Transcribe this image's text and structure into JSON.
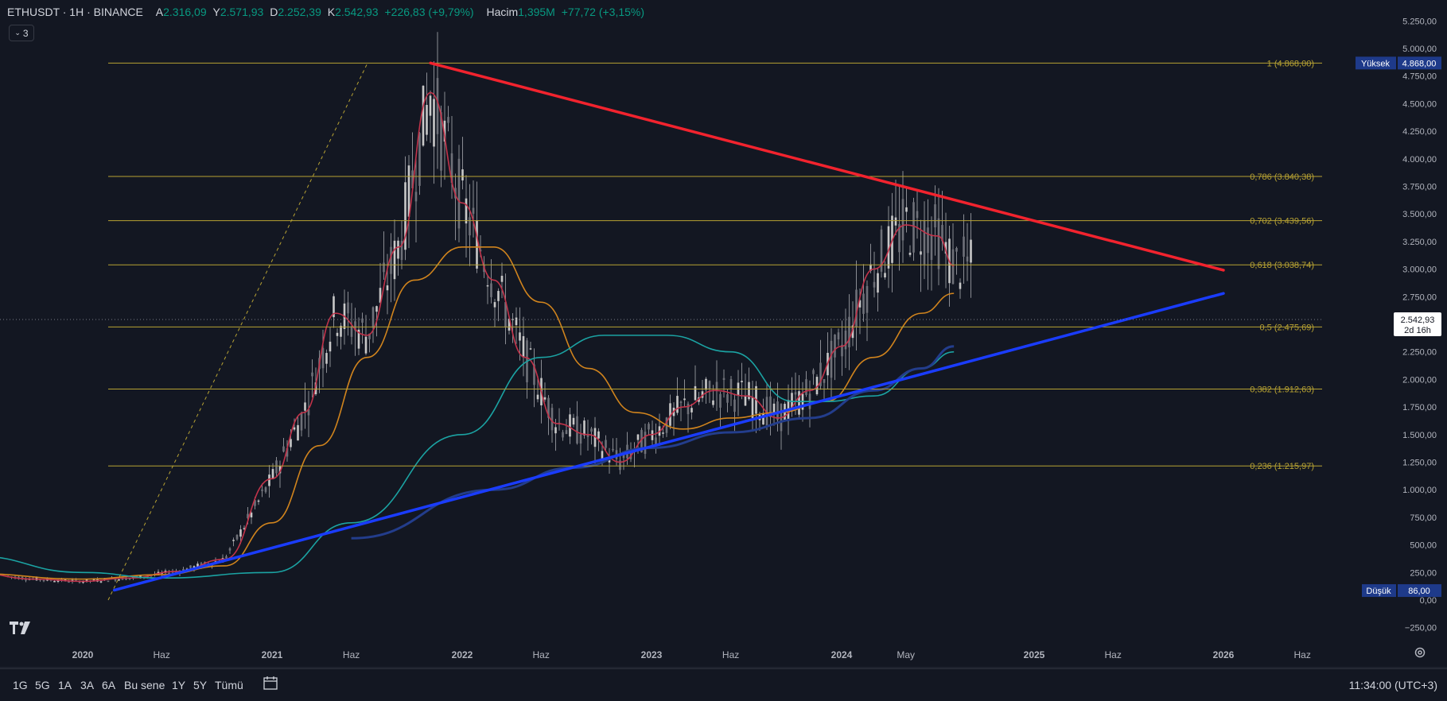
{
  "header": {
    "symbol": "ETHUSDT · 1H · BINANCE",
    "open_label": "A",
    "open": "2.316,09",
    "high_label": "Y",
    "high": "2.571,93",
    "low_label": "D",
    "low": "2.252,39",
    "close_label": "K",
    "close": "2.542,93",
    "change": "+226,83 (+9,79%)",
    "volume_label": "Hacim",
    "volume": "1,395M",
    "volume_change": "+77,72 (+3,15%)",
    "indicator_count": "3"
  },
  "price_axis": {
    "ticks": [
      "5.250,00",
      "5.000,00",
      "4.750,00",
      "4.500,00",
      "4.250,00",
      "4.000,00",
      "3.750,00",
      "3.500,00",
      "3.250,00",
      "3.000,00",
      "2.750,00",
      "2.500,00",
      "2.250,00",
      "2.000,00",
      "1.750,00",
      "1.500,00",
      "1.250,00",
      "1.000,00",
      "750,00",
      "500,00",
      "250,00",
      "0,00",
      "−250,00"
    ],
    "high_label": "Yüksek",
    "high_value": "4.868,00",
    "low_label": "Düşük",
    "low_value": "86,00",
    "last_price": "2.542,93",
    "countdown": "2d 16h"
  },
  "time_axis": {
    "labels": [
      "2020",
      "Haz",
      "2021",
      "Haz",
      "2022",
      "Haz",
      "2023",
      "Haz",
      "2024",
      "May",
      "2025",
      "Haz",
      "2026",
      "Haz"
    ]
  },
  "bottom_bar": {
    "timeframes": [
      "1G",
      "5G",
      "1A",
      "3A",
      "6A",
      "Bu sene",
      "1Y",
      "5Y",
      "Tümü"
    ],
    "clock": "11:34:00 (UTC+3)"
  },
  "colors": {
    "background": "#131722",
    "fib": "#b7a233",
    "trend_top": "#f2232e",
    "trend_bottom": "#1a3cff",
    "ma_red": "#c2334a",
    "ma_orange": "#d1841d",
    "ma_teal": "#1ba3a3",
    "ma_navy": "#233d8c",
    "candle": "#c8c8c8"
  },
  "chart_data": {
    "type": "line",
    "title": "ETHUSDT · 1H · BINANCE",
    "ylim": [
      -250,
      5250
    ],
    "log_scale": false,
    "grid": false,
    "fib_levels": [
      {
        "label": "1 (4.868,00)",
        "value": 4868.0
      },
      {
        "label": "0,786 (3.840,38)",
        "value": 3840.38
      },
      {
        "label": "0,702 (3.439,56)",
        "value": 3439.56
      },
      {
        "label": "0,618 (3.038,74)",
        "value": 3038.74
      },
      {
        "label": "0,5 (2.475,69)",
        "value": 2475.69
      },
      {
        "label": "0,382 (1.912,63)",
        "value": 1912.63
      },
      {
        "label": "0,236 (1.215,97)",
        "value": 1215.97
      }
    ],
    "trendlines": [
      {
        "x": [
          "2021-11",
          "2026-01"
        ],
        "y": [
          4868,
          2990
        ]
      },
      {
        "x": [
          "2020-03",
          "2026-01"
        ],
        "y": [
          90,
          2780
        ]
      }
    ],
    "series": [
      {
        "x": [
          "2019-06",
          "2019-10",
          "2020-01",
          "2020-04",
          "2020-07",
          "2020-10",
          "2021-01",
          "2021-03",
          "2021-05",
          "2021-07",
          "2021-09",
          "2021-11",
          "2022-01",
          "2022-03",
          "2022-05",
          "2022-07",
          "2022-09",
          "2022-11",
          "2023-01",
          "2023-03",
          "2023-05",
          "2023-07",
          "2023-09",
          "2023-11",
          "2024-01",
          "2024-03",
          "2024-05",
          "2024-07",
          "2024-08"
        ],
        "values": [
          250,
          190,
          170,
          200,
          260,
          370,
          1100,
          1700,
          2600,
          2400,
          3200,
          4600,
          3600,
          2900,
          2200,
          1600,
          1500,
          1250,
          1500,
          1750,
          1900,
          1850,
          1650,
          1900,
          2300,
          3000,
          3400,
          3300,
          3030
        ]
      },
      {
        "x": [
          "2019-06",
          "2020-01",
          "2020-06",
          "2020-10",
          "2021-01",
          "2021-04",
          "2021-07",
          "2021-10",
          "2022-01",
          "2022-03",
          "2022-06",
          "2022-09",
          "2022-12",
          "2023-03",
          "2023-06",
          "2023-09",
          "2023-12",
          "2024-03",
          "2024-06",
          "2024-08"
        ],
        "values": [
          240,
          190,
          230,
          310,
          700,
          1400,
          2200,
          2900,
          3200,
          3200,
          2700,
          2100,
          1700,
          1550,
          1650,
          1700,
          1800,
          2200,
          2600,
          2780
        ]
      },
      {
        "x": [
          "2019-06",
          "2020-01",
          "2020-06",
          "2021-01",
          "2021-06",
          "2022-01",
          "2022-06",
          "2022-10",
          "2023-02",
          "2023-06",
          "2023-10",
          "2023-12",
          "2024-03",
          "2024-06",
          "2024-08"
        ],
        "values": [
          400,
          250,
          200,
          250,
          700,
          1500,
          2200,
          2400,
          2400,
          2250,
          1800,
          1800,
          1850,
          2100,
          2250
        ]
      },
      {
        "x": [
          "2021-06",
          "2022-03",
          "2022-08",
          "2023-01",
          "2023-06",
          "2023-11",
          "2024-03",
          "2024-06",
          "2024-08"
        ],
        "values": [
          560,
          1000,
          1200,
          1380,
          1520,
          1650,
          1900,
          2100,
          2300
        ]
      }
    ]
  }
}
